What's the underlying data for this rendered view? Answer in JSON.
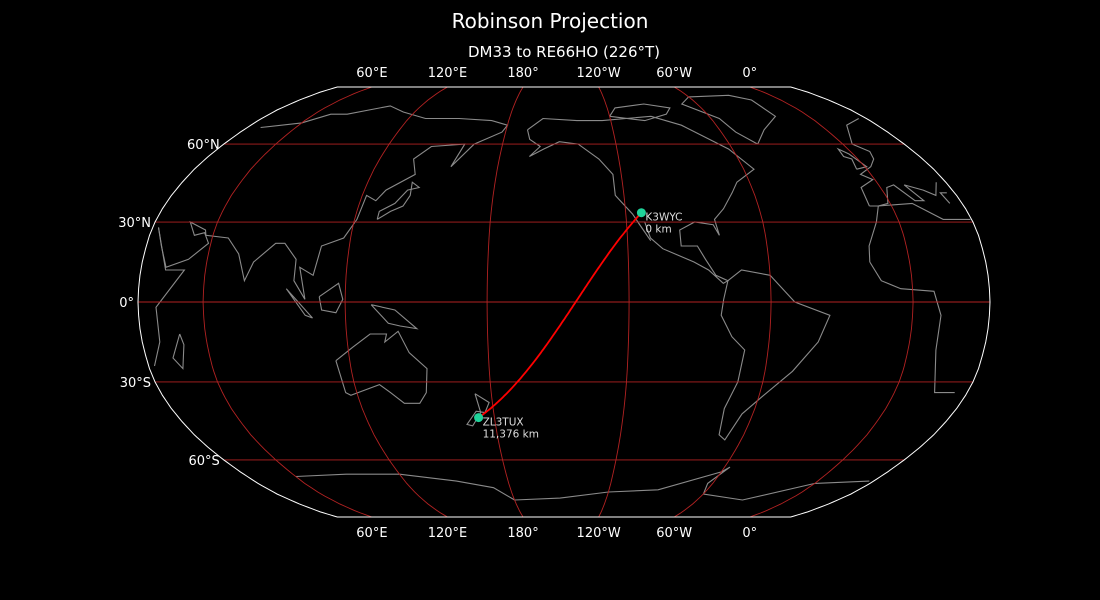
{
  "title": "Robinson Projection",
  "subtitle": "DM33 to RE66HO (226°T)",
  "map": {
    "projection": "Robinson",
    "central_longitude": -147.5,
    "graticule_step_deg": {
      "lon": 60,
      "lat": 30
    },
    "longitude_labels": [
      {
        "lon": 60,
        "text": "60°E"
      },
      {
        "lon": 120,
        "text": "120°E"
      },
      {
        "lon": 180,
        "text": "180°"
      },
      {
        "lon": -120,
        "text": "120°W"
      },
      {
        "lon": -60,
        "text": "60°W"
      },
      {
        "lon": 0,
        "text": "0°"
      }
    ],
    "latitude_labels": [
      {
        "lat": 60,
        "text": "60°N"
      },
      {
        "lat": 30,
        "text": "30°N"
      },
      {
        "lat": 0,
        "text": "0°"
      },
      {
        "lat": -30,
        "text": "30°S"
      },
      {
        "lat": -60,
        "text": "60°S"
      }
    ],
    "stations": [
      {
        "callsign": "K3WYC",
        "distance": "0 km",
        "lon": -113.0,
        "lat": 33.5
      },
      {
        "callsign": "ZL3TUX",
        "distance": "11,376 km",
        "lon": 172.58,
        "lat": -43.42
      }
    ],
    "colors": {
      "background": "#000000",
      "coastline": "#8a8a8a",
      "graticule": "#b22222",
      "path": "#ff0000",
      "marker": "#1fd39a",
      "border": "#ffffff"
    }
  }
}
